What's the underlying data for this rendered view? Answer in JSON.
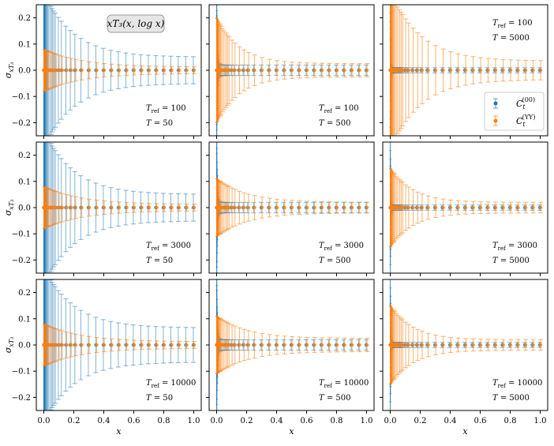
{
  "colors": {
    "blue": "#1f77b4",
    "orange": "#ff7f0e",
    "frame": "#000000",
    "annotation_bg": "#e6e6e6",
    "annotation_border": "#999999"
  },
  "chart_data": {
    "type": "scatter",
    "layout": "3x3 grid",
    "shared_axes": true,
    "xlabel": "x",
    "ylabel": "σ_{xT₃}",
    "xlim": [
      -0.05,
      1.05
    ],
    "ylim": [
      -0.25,
      0.25
    ],
    "xticks": [
      "0.0",
      "0.2",
      "0.4",
      "0.6",
      "0.8",
      "1.0"
    ],
    "xtick_values": [
      0.0,
      0.2,
      0.4,
      0.6,
      0.8,
      1.0
    ],
    "yticks": [
      "0.2",
      "0.1",
      "0.0",
      "−0.1",
      "−0.2"
    ],
    "ytick_values": [
      0.2,
      0.1,
      0.0,
      -0.1,
      -0.2
    ],
    "annotation": "xT₃(x, log x)",
    "legend_position": "right, top-right panel",
    "legend": [
      {
        "label": "C_t^(00)",
        "label_main": "C",
        "label_sub": "t",
        "label_sup": "(00)",
        "color": "#1f77b4"
      },
      {
        "label": "C_t^(YY)",
        "label_main": "C",
        "label_sub": "t",
        "label_sup": "(YY)",
        "color": "#ff7f0e"
      }
    ],
    "x_points": [
      0.0,
      0.0005,
      0.001,
      0.0015,
      0.002,
      0.003,
      0.004,
      0.005,
      0.006,
      0.008,
      0.01,
      0.013,
      0.016,
      0.02,
      0.025,
      0.03,
      0.04,
      0.05,
      0.06,
      0.07,
      0.08,
      0.1,
      0.12,
      0.15,
      0.18,
      0.21,
      0.25,
      0.3,
      0.35,
      0.4,
      0.45,
      0.5,
      0.55,
      0.6,
      0.65,
      0.7,
      0.75,
      0.8,
      0.85,
      0.9,
      0.95,
      1.0
    ],
    "panels": [
      {
        "row": 1,
        "col": 1,
        "T_ref": "100",
        "T": "50",
        "label_pos": "bottom-right",
        "series": [
          {
            "name": "C_t^(00)",
            "color": "#1f77b4",
            "y": 0.0,
            "err_at_0": 0.3,
            "err_at_1": 0.05,
            "decay": 0.2
          },
          {
            "name": "C_t^(YY)",
            "color": "#ff7f0e",
            "y": 0.0,
            "err_at_0": 0.08,
            "err_at_1": 0.012,
            "decay": 0.25
          }
        ]
      },
      {
        "row": 1,
        "col": 2,
        "T_ref": "100",
        "T": "500",
        "label_pos": "bottom-right",
        "series": [
          {
            "name": "C_t^(00)",
            "color": "#1f77b4",
            "y": 0.0,
            "err_at_0": 0.3,
            "err_at_1": 0.02,
            "decay": 0.005
          },
          {
            "name": "C_t^(YY)",
            "color": "#ff7f0e",
            "y": 0.0,
            "err_at_0": 0.2,
            "err_at_1": 0.025,
            "decay": 0.15
          }
        ]
      },
      {
        "row": 1,
        "col": 3,
        "T_ref": "100",
        "T": "5000",
        "label_pos": "top-right",
        "series": [
          {
            "name": "C_t^(00)",
            "color": "#1f77b4",
            "y": 0.0,
            "err_at_0": 0.3,
            "err_at_1": 0.01,
            "decay": 0.003
          },
          {
            "name": "C_t^(YY)",
            "color": "#ff7f0e",
            "y": 0.0,
            "err_at_0": 0.3,
            "err_at_1": 0.035,
            "decay": 0.2
          }
        ]
      },
      {
        "row": 2,
        "col": 1,
        "T_ref": "3000",
        "T": "50",
        "label_pos": "bottom-right",
        "series": [
          {
            "name": "C_t^(00)",
            "color": "#1f77b4",
            "y": 0.0,
            "err_at_0": 0.3,
            "err_at_1": 0.05,
            "decay": 0.2
          },
          {
            "name": "C_t^(YY)",
            "color": "#ff7f0e",
            "y": 0.0,
            "err_at_0": 0.08,
            "err_at_1": 0.012,
            "decay": 0.25
          }
        ]
      },
      {
        "row": 2,
        "col": 2,
        "T_ref": "3000",
        "T": "500",
        "label_pos": "bottom-right",
        "series": [
          {
            "name": "C_t^(00)",
            "color": "#1f77b4",
            "y": 0.0,
            "err_at_0": 0.3,
            "err_at_1": 0.02,
            "decay": 0.005
          },
          {
            "name": "C_t^(YY)",
            "color": "#ff7f0e",
            "y": 0.0,
            "err_at_0": 0.11,
            "err_at_1": 0.02,
            "decay": 0.2
          }
        ]
      },
      {
        "row": 2,
        "col": 3,
        "T_ref": "3000",
        "T": "5000",
        "label_pos": "bottom-right",
        "series": [
          {
            "name": "C_t^(00)",
            "color": "#1f77b4",
            "y": 0.0,
            "err_at_0": 0.3,
            "err_at_1": 0.01,
            "decay": 0.003
          },
          {
            "name": "C_t^(YY)",
            "color": "#ff7f0e",
            "y": 0.0,
            "err_at_0": 0.15,
            "err_at_1": 0.02,
            "decay": 0.15
          }
        ]
      },
      {
        "row": 3,
        "col": 1,
        "T_ref": "10000",
        "T": "50",
        "label_pos": "bottom-right",
        "series": [
          {
            "name": "C_t^(00)",
            "color": "#1f77b4",
            "y": 0.0,
            "err_at_0": 0.3,
            "err_at_1": 0.065,
            "decay": 0.2
          },
          {
            "name": "C_t^(YY)",
            "color": "#ff7f0e",
            "y": 0.0,
            "err_at_0": 0.08,
            "err_at_1": 0.012,
            "decay": 0.25
          }
        ]
      },
      {
        "row": 3,
        "col": 2,
        "T_ref": "10000",
        "T": "500",
        "label_pos": "bottom-right",
        "series": [
          {
            "name": "C_t^(00)",
            "color": "#1f77b4",
            "y": 0.0,
            "err_at_0": 0.3,
            "err_at_1": 0.02,
            "decay": 0.005
          },
          {
            "name": "C_t^(YY)",
            "color": "#ff7f0e",
            "y": 0.0,
            "err_at_0": 0.11,
            "err_at_1": 0.025,
            "decay": 0.2
          }
        ]
      },
      {
        "row": 3,
        "col": 3,
        "T_ref": "10000",
        "T": "5000",
        "label_pos": "bottom-right",
        "series": [
          {
            "name": "C_t^(00)",
            "color": "#1f77b4",
            "y": 0.0,
            "err_at_0": 0.3,
            "err_at_1": 0.01,
            "decay": 0.003
          },
          {
            "name": "C_t^(YY)",
            "color": "#ff7f0e",
            "y": 0.0,
            "err_at_0": 0.15,
            "err_at_1": 0.02,
            "decay": 0.15
          }
        ]
      }
    ]
  }
}
